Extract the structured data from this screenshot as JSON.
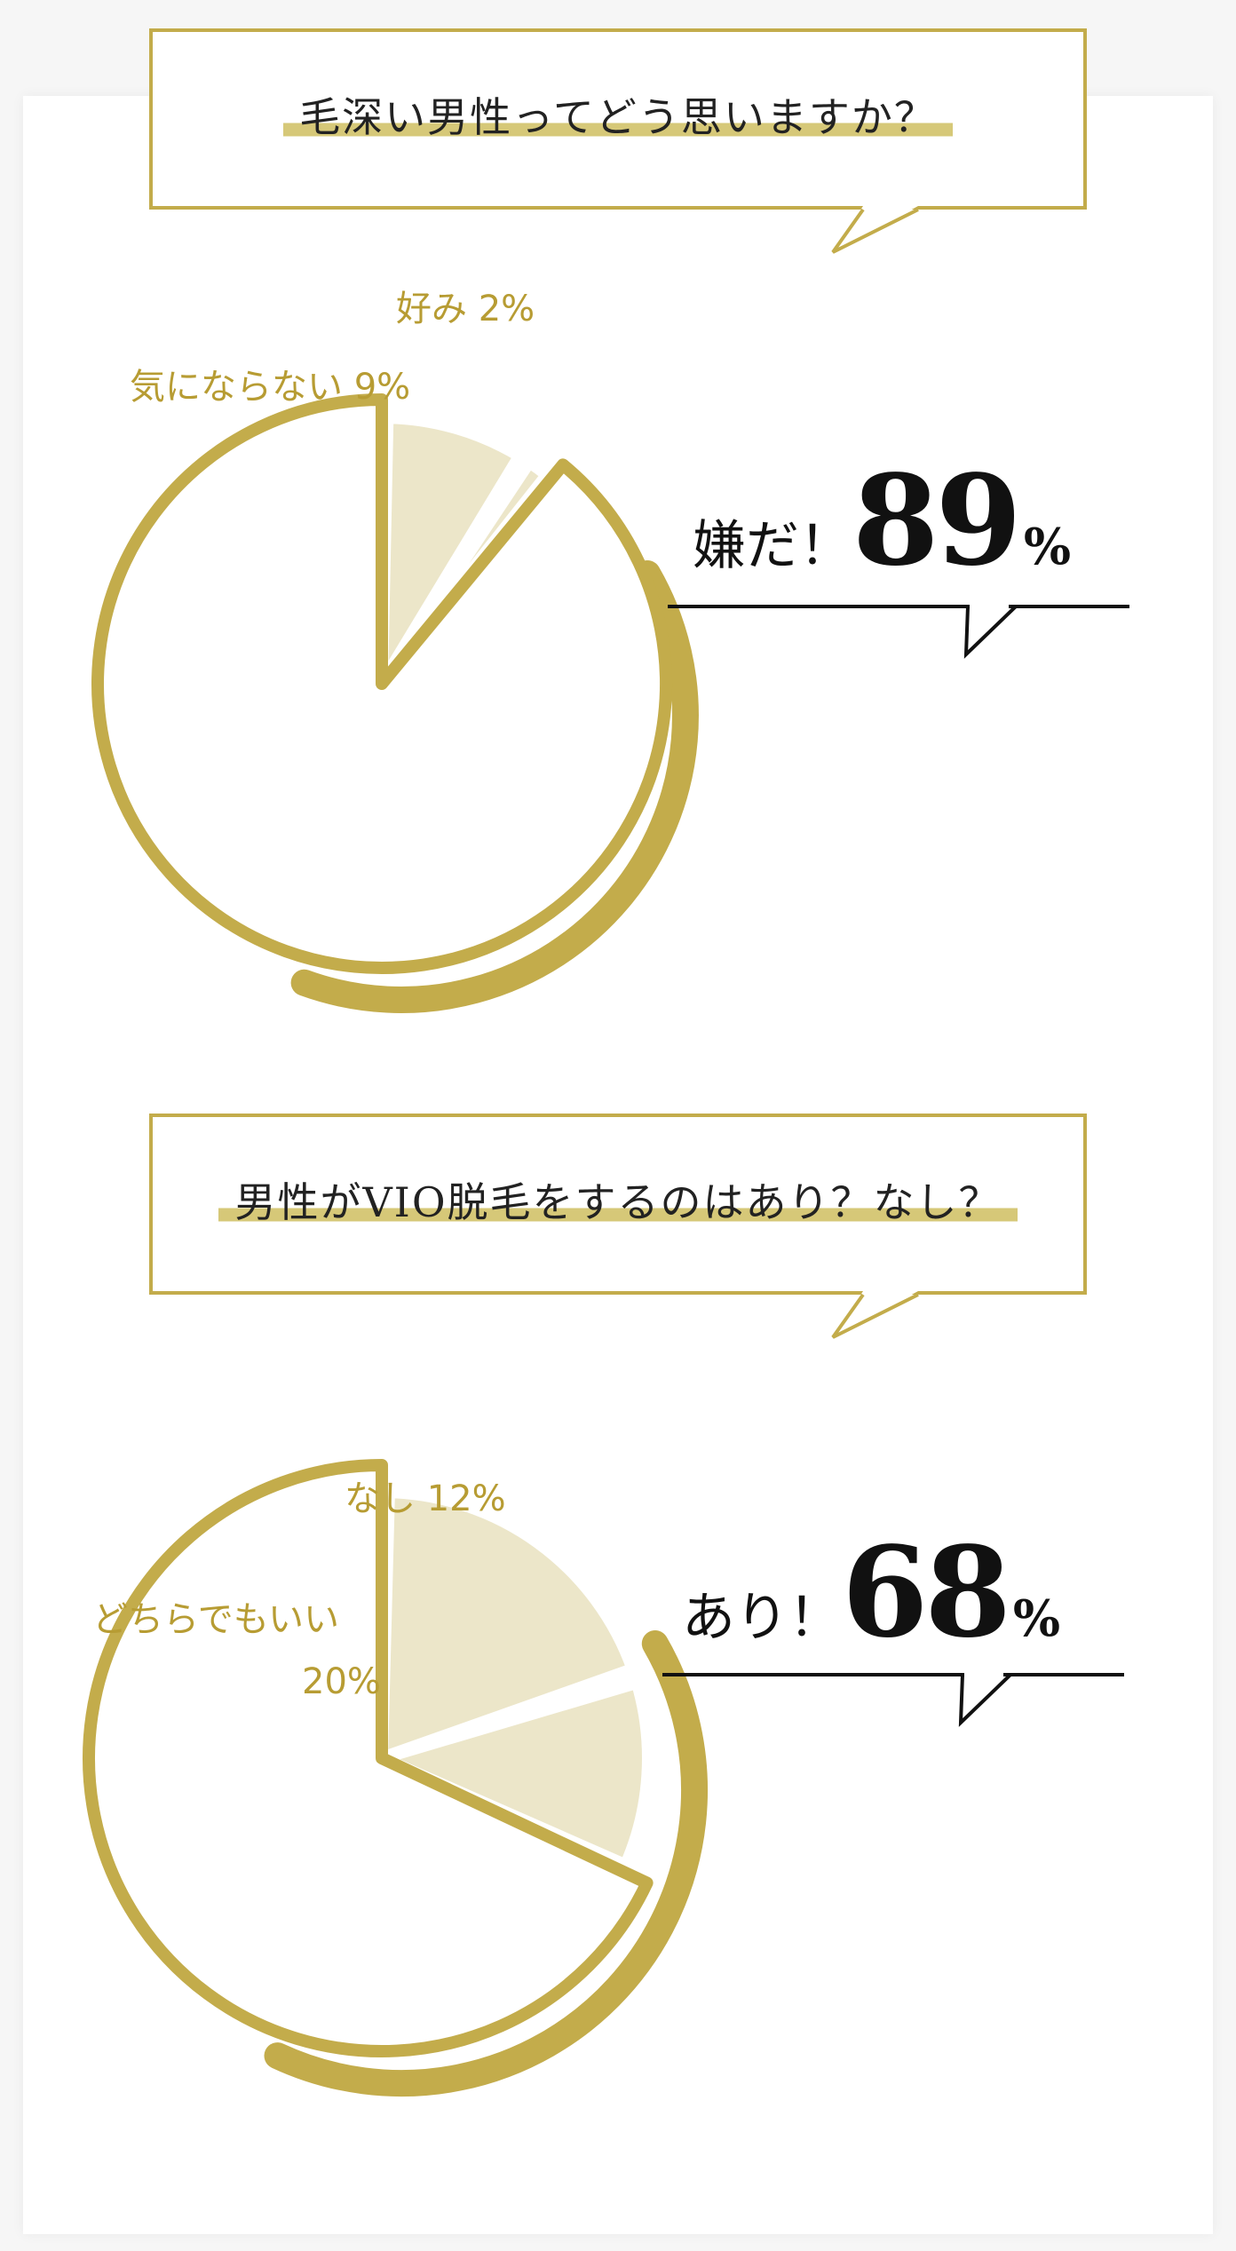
{
  "chart_data": [
    {
      "type": "pie",
      "title": "毛深い男性ってどう思いますか？",
      "slices": [
        {
          "label": "嫌だ！",
          "value": 89,
          "color": "#c3ac4b"
        },
        {
          "label": "気にならない",
          "value": 9,
          "color": "#ece6c9"
        },
        {
          "label": "好み",
          "value": 2,
          "color": "#ece6c9"
        }
      ],
      "labels": {
        "like": "好み 2%",
        "dontmind": "気にならない 9%"
      },
      "callout": {
        "word": "嫌だ！",
        "number": "89",
        "unit": "%"
      }
    },
    {
      "type": "pie",
      "title": "男性がVIO脱毛をするのはあり？なし？",
      "slices": [
        {
          "label": "あり！",
          "value": 68,
          "color": "#c3ac4b"
        },
        {
          "label": "どちらでもいい",
          "value": 20,
          "color": "#ece6c9"
        },
        {
          "label": "なし",
          "value": 12,
          "color": "#ece6c9"
        }
      ],
      "labels": {
        "no": "なし 12%",
        "either_line1": "どちらでもいい",
        "either_line2": "20%"
      },
      "callout": {
        "word": "あり！",
        "number": "68",
        "unit": "%"
      }
    }
  ]
}
